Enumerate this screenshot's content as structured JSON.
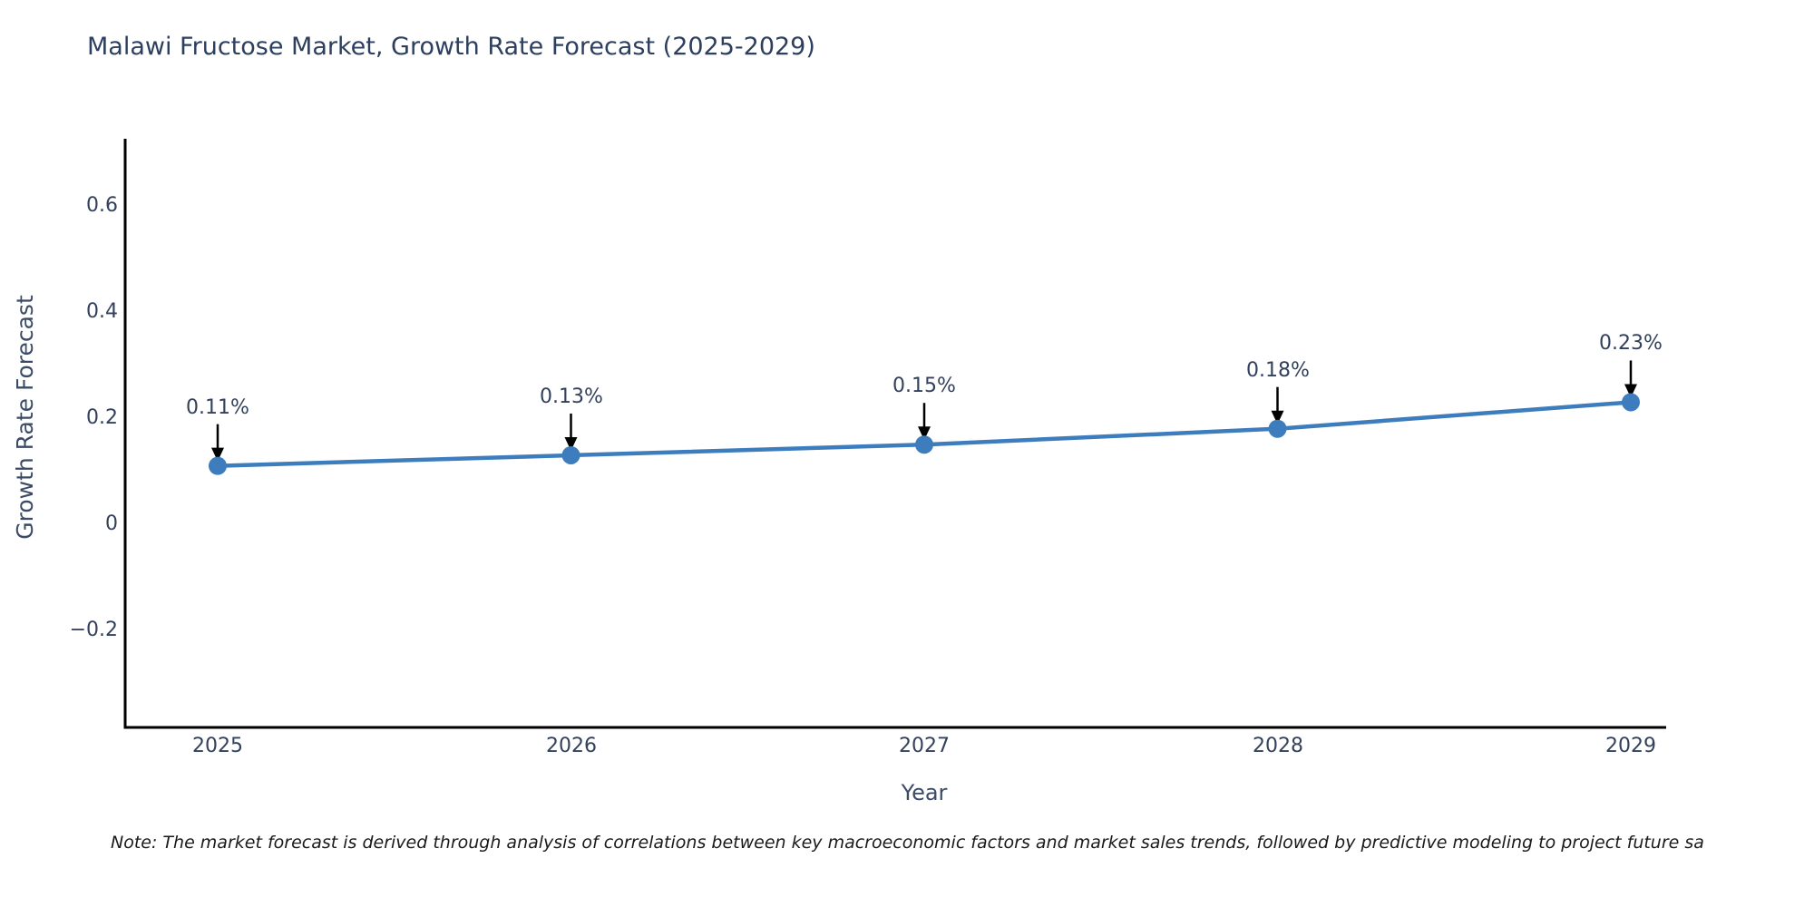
{
  "title": "Malawi Fructose Market, Growth Rate Forecast (2025-2029)",
  "note": "Note: The market forecast is derived through analysis of correlations between key macroeconomic factors and market sales trends, followed by predictive modeling to project future sa",
  "colors": {
    "line": "#3d7dbd",
    "marker": "#3d7dbd",
    "axis_spine": "#000000",
    "arrow": "#000000",
    "title_text": "#2d3f5e",
    "tick_text": "#33415c"
  },
  "chart_data": {
    "type": "line",
    "title": "Malawi Fructose Market, Growth Rate Forecast (2025-2029)",
    "xlabel": "Year",
    "ylabel": "Growth Rate Forecast",
    "x": [
      2025,
      2026,
      2027,
      2028,
      2029
    ],
    "values": [
      0.11,
      0.13,
      0.15,
      0.18,
      0.23
    ],
    "series": [
      {
        "name": "Growth Rate Forecast",
        "values": [
          0.11,
          0.13,
          0.15,
          0.18,
          0.23
        ]
      }
    ],
    "point_labels": [
      "0.11%",
      "0.13%",
      "0.15%",
      "0.18%",
      "0.23%"
    ],
    "xtick_labels": [
      "2025",
      "2026",
      "2027",
      "2028",
      "2029"
    ],
    "ytick_labels": [
      "0.6",
      "0.4",
      "0.2",
      "0",
      "−0.2"
    ],
    "yticks": [
      0.6,
      0.4,
      0.2,
      0,
      -0.2
    ],
    "ylim": [
      -0.38,
      0.73
    ],
    "grid": false,
    "legend": "none",
    "annotations": "black arrows pointing down from value labels to each marker"
  }
}
